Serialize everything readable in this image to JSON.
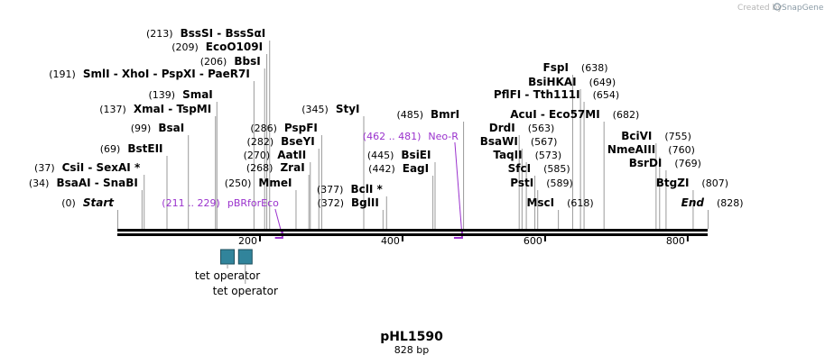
{
  "brand": {
    "created_by": "Created by",
    "product": "SnapGene"
  },
  "plasmid": {
    "name": "pHL1590",
    "length_label": "828 bp",
    "length": 828
  },
  "axis": {
    "ticks": [
      200,
      400,
      600,
      800
    ]
  },
  "features": [
    {
      "label": "tet operator",
      "start": 145,
      "end": 164,
      "color": "#31849b"
    },
    {
      "label": "tet operator",
      "start": 170,
      "end": 189,
      "color": "#31849b"
    }
  ],
  "primers": [
    {
      "range": "(211 .. 229)",
      "name": "pBRforEco",
      "start": 211,
      "end": 229
    },
    {
      "range": "(462 .. 481)",
      "name": "Neo-R",
      "start": 462,
      "end": 481
    }
  ],
  "sites": [
    {
      "pos": 0,
      "name": "Start",
      "side": "left"
    },
    {
      "pos": 34,
      "name": "BsaAI  -  SnaBI",
      "side": "left"
    },
    {
      "pos": 37,
      "name": "CsiI  -  SexAI *",
      "side": "left"
    },
    {
      "pos": 69,
      "name": "BstEII",
      "side": "left"
    },
    {
      "pos": 99,
      "name": "BsaI",
      "side": "left"
    },
    {
      "pos": 137,
      "name": "XmaI  -  TspMI",
      "side": "left"
    },
    {
      "pos": 139,
      "name": "SmaI",
      "side": "left"
    },
    {
      "pos": 191,
      "name": "SmlI  -  XhoI  -  PspXI  -  PaeR7I",
      "side": "left"
    },
    {
      "pos": 206,
      "name": "BbsI",
      "side": "left"
    },
    {
      "pos": 209,
      "name": "EcoO109I",
      "side": "left"
    },
    {
      "pos": 213,
      "name": "BssSI  -  BssSαI",
      "side": "left"
    },
    {
      "pos": 250,
      "name": "MmeI",
      "side": "left"
    },
    {
      "pos": 268,
      "name": "ZraI",
      "side": "left"
    },
    {
      "pos": 270,
      "name": "AatII",
      "side": "left"
    },
    {
      "pos": 282,
      "name": "BseYI",
      "side": "left"
    },
    {
      "pos": 286,
      "name": "PspFI",
      "side": "left"
    },
    {
      "pos": 345,
      "name": "StyI",
      "side": "left"
    },
    {
      "pos": 372,
      "name": "BglII",
      "side": "left"
    },
    {
      "pos": 377,
      "name": "BclI *",
      "side": "left"
    },
    {
      "pos": 442,
      "name": "EagI",
      "side": "left"
    },
    {
      "pos": 445,
      "name": "BsiEI",
      "side": "left"
    },
    {
      "pos": 485,
      "name": "BmrI",
      "side": "left"
    },
    {
      "pos": 563,
      "name": "DrdI",
      "side": "right"
    },
    {
      "pos": 567,
      "name": "BsaWI",
      "side": "right"
    },
    {
      "pos": 573,
      "name": "TaqII",
      "side": "right"
    },
    {
      "pos": 585,
      "name": "SfcI",
      "side": "right"
    },
    {
      "pos": 589,
      "name": "PstI",
      "side": "right"
    },
    {
      "pos": 618,
      "name": "MscI",
      "side": "right"
    },
    {
      "pos": 638,
      "name": "FspI",
      "side": "right"
    },
    {
      "pos": 649,
      "name": "BsiHKAI",
      "side": "right"
    },
    {
      "pos": 654,
      "name": "PflFI  -  Tth111I",
      "side": "right"
    },
    {
      "pos": 682,
      "name": "AcuI  -  Eco57MI",
      "side": "right"
    },
    {
      "pos": 755,
      "name": "BciVI",
      "side": "right"
    },
    {
      "pos": 760,
      "name": "NmeAIII",
      "side": "right"
    },
    {
      "pos": 769,
      "name": "BsrDI",
      "side": "right"
    },
    {
      "pos": 807,
      "name": "BtgZI",
      "side": "right"
    },
    {
      "pos": 828,
      "name": "End",
      "side": "right"
    }
  ]
}
